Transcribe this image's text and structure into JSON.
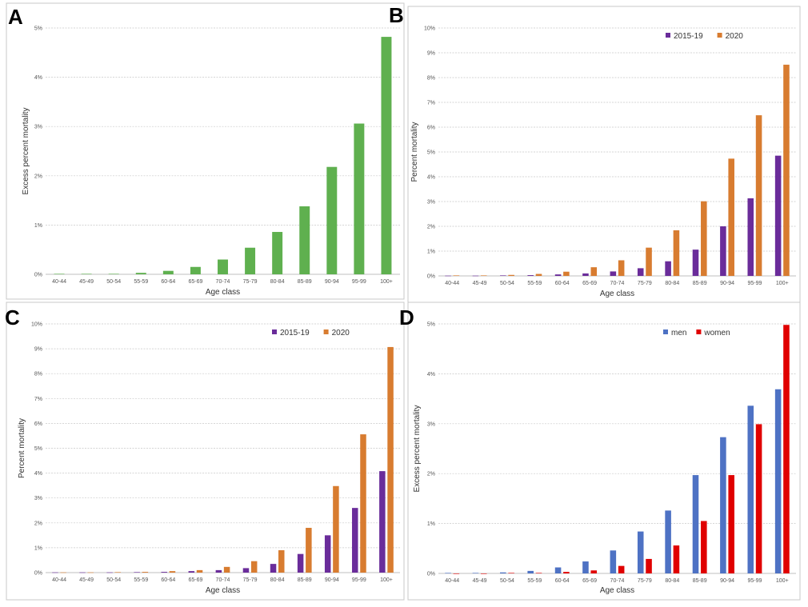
{
  "chart_data": [
    {
      "panel": "A",
      "type": "bar",
      "categories": [
        "40-44",
        "45-49",
        "50-54",
        "55-59",
        "60-64",
        "65-69",
        "70-74",
        "75-79",
        "80-84",
        "85-89",
        "90-94",
        "95-99",
        "100+"
      ],
      "series": [
        {
          "values": [
            0.01,
            0.01,
            0.01,
            0.03,
            0.07,
            0.15,
            0.3,
            0.54,
            0.86,
            1.38,
            2.18,
            3.06,
            4.82
          ],
          "color": "#5fb04f"
        }
      ],
      "ylabel": "Excess percent mortality",
      "xlabel": "Age class",
      "ylim": [
        0,
        5
      ],
      "yticks": [
        "0%",
        "1%",
        "2%",
        "3%",
        "4%",
        "5%"
      ],
      "grid": true,
      "legend": "none"
    },
    {
      "panel": "B",
      "type": "bar",
      "categories": [
        "40-44",
        "45-49",
        "50-54",
        "55-59",
        "60-64",
        "65-69",
        "70-74",
        "75-79",
        "80-84",
        "85-89",
        "90-94",
        "95-99",
        "100+"
      ],
      "series": [
        {
          "name": "2015-19",
          "values": [
            0.01,
            0.01,
            0.02,
            0.03,
            0.06,
            0.1,
            0.18,
            0.31,
            0.59,
            1.06,
            2.0,
            3.13,
            4.85
          ],
          "color": "#6a2c9a"
        },
        {
          "name": "2020",
          "values": [
            0.02,
            0.02,
            0.04,
            0.08,
            0.17,
            0.35,
            0.63,
            1.14,
            1.84,
            3.01,
            4.73,
            6.48,
            8.52
          ],
          "color": "#d87c30"
        }
      ],
      "ylabel": "Percent mortality",
      "xlabel": "Age class",
      "ylim": [
        0,
        10
      ],
      "yticks": [
        "0%",
        "1%",
        "2%",
        "3%",
        "4%",
        "5%",
        "6%",
        "7%",
        "8%",
        "9%",
        "10%"
      ],
      "grid": true,
      "legend": "top-center"
    },
    {
      "panel": "C",
      "type": "bar",
      "categories": [
        "40-44",
        "45-49",
        "50-54",
        "55-59",
        "60-64",
        "65-69",
        "70-74",
        "75-79",
        "80-84",
        "85-89",
        "90-94",
        "95-99",
        "100+"
      ],
      "series": [
        {
          "name": "2015-19",
          "values": [
            0.01,
            0.01,
            0.01,
            0.02,
            0.03,
            0.06,
            0.1,
            0.18,
            0.35,
            0.75,
            1.5,
            2.6,
            4.08
          ],
          "color": "#6a2c9a"
        },
        {
          "name": "2020",
          "values": [
            0.01,
            0.01,
            0.02,
            0.03,
            0.06,
            0.1,
            0.23,
            0.46,
            0.9,
            1.8,
            3.48,
            5.56,
            9.07
          ],
          "color": "#d87c30"
        }
      ],
      "ylabel": "Percent mortality",
      "xlabel": "Age class",
      "ylim": [
        0,
        10
      ],
      "yticks": [
        "0%",
        "1%",
        "2%",
        "3%",
        "4%",
        "5%",
        "6%",
        "7%",
        "8%",
        "9%",
        "10%"
      ],
      "grid": true,
      "legend": "top-center"
    },
    {
      "panel": "D",
      "type": "bar",
      "categories": [
        "40-44",
        "45-49",
        "50-54",
        "55-59",
        "60-64",
        "65-69",
        "70-74",
        "75-79",
        "80-84",
        "85-89",
        "90-94",
        "95-99",
        "100+"
      ],
      "series": [
        {
          "name": "men",
          "values": [
            0.01,
            0.01,
            0.02,
            0.05,
            0.12,
            0.24,
            0.46,
            0.84,
            1.26,
            1.97,
            2.73,
            3.36,
            3.69
          ],
          "color": "#4e72c4"
        },
        {
          "name": "women",
          "values": [
            0.0,
            0.0,
            0.01,
            0.01,
            0.03,
            0.06,
            0.15,
            0.29,
            0.56,
            1.05,
            1.97,
            2.99,
            4.98
          ],
          "color": "#e00000"
        }
      ],
      "ylabel": "Excess percent mortality",
      "xlabel": "Age class",
      "ylim": [
        0,
        5
      ],
      "yticks": [
        "0%",
        "1%",
        "2%",
        "3%",
        "4%",
        "5%"
      ],
      "grid": true,
      "legend": "top-center"
    }
  ]
}
